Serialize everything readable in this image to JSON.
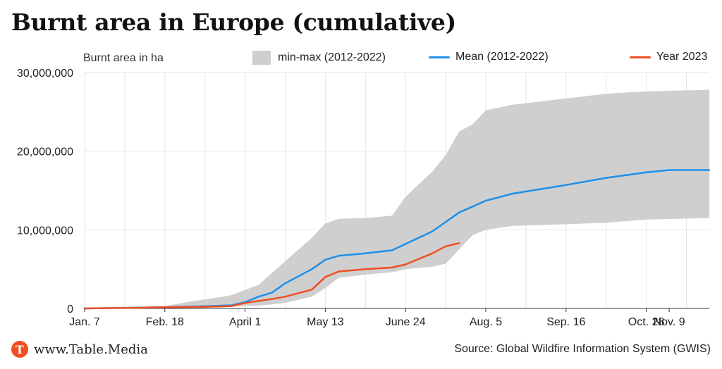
{
  "title": "Burnt area in Europe (cumulative)",
  "brand": {
    "logo_letter": "T",
    "name": "www.Table.Media",
    "color": "#f04e23"
  },
  "source": "Source: Global Wildfire Information System (GWIS)",
  "colors": {
    "band": "#cfcfcf",
    "mean": "#1e90e8",
    "year": "#f04e23",
    "grid": "#e6e6e6"
  },
  "chart_data": {
    "type": "area",
    "ylabel": "Burnt area in ha",
    "x_axis_type": "date",
    "x_ticks": [
      "Jan. 7",
      "Feb. 18",
      "April 1",
      "May 13",
      "June 24",
      "Aug. 5",
      "Sep. 16",
      "Oct. 28",
      "Nov. 9"
    ],
    "y_ticks": [
      "0",
      "10,000,000",
      "20,000,000",
      "30,000,000"
    ],
    "ylim": [
      0,
      30000000
    ],
    "grid": true,
    "legend_position": "top",
    "series": [
      {
        "name": "min-max (2012-2022)",
        "kind": "band",
        "points": [
          {
            "x": "Jan. 7",
            "min": 0,
            "max": 50000
          },
          {
            "x": "Jan. 28",
            "min": 30000,
            "max": 120000
          },
          {
            "x": "Feb. 18",
            "min": 60000,
            "max": 300000
          },
          {
            "x": "March 4",
            "min": 120000,
            "max": 900000
          },
          {
            "x": "March 18",
            "min": 200000,
            "max": 1400000
          },
          {
            "x": "March 25",
            "min": 250000,
            "max": 1700000
          },
          {
            "x": "April 8",
            "min": 350000,
            "max": 3000000
          },
          {
            "x": "April 22",
            "min": 700000,
            "max": 6000000
          },
          {
            "x": "May 6",
            "min": 1500000,
            "max": 9000000
          },
          {
            "x": "May 13",
            "min": 2600000,
            "max": 10800000
          },
          {
            "x": "May 20",
            "min": 3900000,
            "max": 11400000
          },
          {
            "x": "June 3",
            "min": 4300000,
            "max": 11500000
          },
          {
            "x": "June 17",
            "min": 4600000,
            "max": 11800000
          },
          {
            "x": "June 24",
            "min": 5000000,
            "max": 14200000
          },
          {
            "x": "July 8",
            "min": 5300000,
            "max": 17400000
          },
          {
            "x": "July 15",
            "min": 5700000,
            "max": 19500000
          },
          {
            "x": "July 22",
            "min": 7500000,
            "max": 22500000
          },
          {
            "x": "July 29",
            "min": 9300000,
            "max": 23400000
          },
          {
            "x": "Aug. 5",
            "min": 10000000,
            "max": 25200000
          },
          {
            "x": "Aug. 19",
            "min": 10500000,
            "max": 25900000
          },
          {
            "x": "Sep. 16",
            "min": 10700000,
            "max": 26700000
          },
          {
            "x": "Oct. 7",
            "min": 10900000,
            "max": 27300000
          },
          {
            "x": "Oct. 28",
            "min": 11300000,
            "max": 27600000
          },
          {
            "x": "Nov. 30",
            "min": 11500000,
            "max": 27800000
          }
        ]
      },
      {
        "name": "Mean (2012-2022)",
        "kind": "line",
        "points": [
          {
            "x": "Jan. 7",
            "y": 0
          },
          {
            "x": "Jan. 28",
            "y": 80000
          },
          {
            "x": "Feb. 18",
            "y": 150000
          },
          {
            "x": "March 11",
            "y": 280000
          },
          {
            "x": "March 25",
            "y": 400000
          },
          {
            "x": "April 1",
            "y": 800000
          },
          {
            "x": "April 8",
            "y": 1500000
          },
          {
            "x": "April 15",
            "y": 2000000
          },
          {
            "x": "April 22",
            "y": 3200000
          },
          {
            "x": "May 6",
            "y": 5000000
          },
          {
            "x": "May 13",
            "y": 6200000
          },
          {
            "x": "May 20",
            "y": 6700000
          },
          {
            "x": "June 3",
            "y": 7000000
          },
          {
            "x": "June 17",
            "y": 7400000
          },
          {
            "x": "June 24",
            "y": 8200000
          },
          {
            "x": "July 8",
            "y": 9800000
          },
          {
            "x": "July 22",
            "y": 12200000
          },
          {
            "x": "Aug. 5",
            "y": 13700000
          },
          {
            "x": "Aug. 19",
            "y": 14600000
          },
          {
            "x": "Sep. 16",
            "y": 15700000
          },
          {
            "x": "Oct. 7",
            "y": 16600000
          },
          {
            "x": "Oct. 28",
            "y": 17300000
          },
          {
            "x": "Nov. 9",
            "y": 17600000
          },
          {
            "x": "Nov. 30",
            "y": 17600000
          }
        ]
      },
      {
        "name": "Year 2023",
        "kind": "line",
        "points": [
          {
            "x": "Jan. 7",
            "y": 0
          },
          {
            "x": "Jan. 28",
            "y": 50000
          },
          {
            "x": "Feb. 18",
            "y": 150000
          },
          {
            "x": "March 11",
            "y": 200000
          },
          {
            "x": "March 25",
            "y": 300000
          },
          {
            "x": "April 1",
            "y": 700000
          },
          {
            "x": "April 15",
            "y": 1200000
          },
          {
            "x": "April 22",
            "y": 1500000
          },
          {
            "x": "May 6",
            "y": 2400000
          },
          {
            "x": "May 13",
            "y": 4000000
          },
          {
            "x": "May 20",
            "y": 4700000
          },
          {
            "x": "June 3",
            "y": 5000000
          },
          {
            "x": "June 17",
            "y": 5200000
          },
          {
            "x": "June 24",
            "y": 5600000
          },
          {
            "x": "July 8",
            "y": 7000000
          },
          {
            "x": "July 15",
            "y": 7900000
          },
          {
            "x": "July 22",
            "y": 8300000
          }
        ]
      }
    ]
  }
}
